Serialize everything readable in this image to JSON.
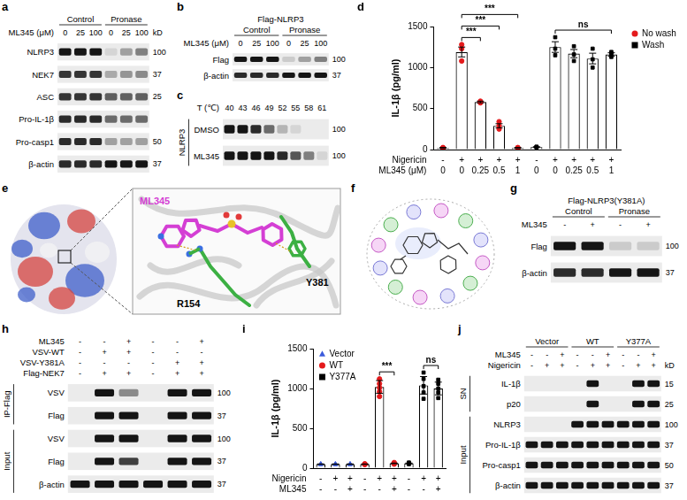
{
  "panels": {
    "a": {
      "letter": "a",
      "groups": [
        {
          "label": "Control",
          "lanes": 3
        },
        {
          "label": "Pronase",
          "lanes": 3
        }
      ],
      "lane_rows": [
        {
          "label": "ML345 (μM)",
          "values": [
            0,
            25,
            100,
            0,
            25,
            100
          ]
        }
      ],
      "unit": "kD",
      "rows": [
        {
          "label": "NLRP3",
          "marker": 100,
          "bands": [
            1,
            1,
            1,
            0.1,
            0.35,
            0.5
          ]
        },
        {
          "label": "NEK7",
          "marker": 37,
          "bands": [
            0.85,
            0.85,
            0.85,
            0.3,
            0.4,
            0.45
          ]
        },
        {
          "label": "ASC",
          "marker": 25,
          "bands": [
            0.85,
            0.85,
            0.85,
            0.65,
            0.65,
            0.65
          ]
        },
        {
          "label": "Pro-IL-1β",
          "bands": [
            0.9,
            0.9,
            0.9,
            0.6,
            0.6,
            0.6
          ]
        },
        {
          "label": "Pro-casp1",
          "marker": 50,
          "bands": [
            0.9,
            0.9,
            0.9,
            0.35,
            0.35,
            0.35
          ]
        },
        {
          "label": "β-actin",
          "marker": 37,
          "bands": [
            0.9,
            0.9,
            0.9,
            1,
            1,
            1
          ]
        }
      ]
    },
    "b": {
      "letter": "b",
      "title": "Flag-NLRP3",
      "groups": [
        {
          "label": "Control",
          "lanes": 3
        },
        {
          "label": "Pronase",
          "lanes": 3
        }
      ],
      "lane_rows": [
        {
          "label": "ML345 (μM)",
          "values": [
            0,
            25,
            100,
            0,
            25,
            100
          ]
        }
      ],
      "rows": [
        {
          "label": "Flag",
          "marker": 100,
          "bands": [
            1,
            1,
            1,
            0.15,
            0.35,
            0.5
          ]
        },
        {
          "label": "β-actin",
          "marker": 37,
          "bands": [
            0.9,
            0.9,
            0.9,
            1,
            1,
            1
          ]
        }
      ]
    },
    "c": {
      "letter": "c",
      "lane_rows": [
        {
          "label": "T (℃)",
          "values": [
            40,
            43,
            46,
            49,
            52,
            55,
            58,
            61
          ]
        }
      ],
      "row_groups": [
        {
          "label": "NLRP3",
          "rows": 2
        }
      ],
      "rows": [
        {
          "label": "DMSO",
          "marker": 100,
          "bands": [
            1,
            1,
            0.9,
            0.6,
            0.25,
            0.1,
            0,
            0
          ]
        },
        {
          "label": "ML345",
          "marker": 100,
          "bands": [
            1,
            1,
            1,
            1,
            0.9,
            0.7,
            0.5,
            0.1
          ]
        }
      ]
    },
    "e": {
      "letter": "e",
      "ligand": "ML345",
      "residues": [
        "R154",
        "Y381"
      ]
    },
    "f": {
      "letter": "f"
    },
    "g": {
      "letter": "g",
      "title": "Flag-NLRP3(Y381A)",
      "groups": [
        {
          "label": "Control",
          "lanes": 2
        },
        {
          "label": "Pronase",
          "lanes": 2
        }
      ],
      "lane_rows": [
        {
          "label": "ML345",
          "values": [
            "-",
            "+",
            "-",
            "+"
          ]
        }
      ],
      "rows": [
        {
          "label": "Flag",
          "marker": 100,
          "bands": [
            1,
            1,
            0.15,
            0.15
          ]
        },
        {
          "label": "β-actin",
          "marker": 37,
          "bands": [
            0.9,
            0.9,
            1,
            1
          ]
        }
      ]
    },
    "h": {
      "letter": "h",
      "lane_rows": [
        {
          "label": "ML345",
          "values": [
            "-",
            "-",
            "+",
            "-",
            "-",
            "+"
          ]
        },
        {
          "label": "VSV-WT",
          "values": [
            "-",
            "+",
            "+",
            "-",
            "-",
            "-"
          ]
        },
        {
          "label": "VSV-Y381A",
          "values": [
            "-",
            "-",
            "-",
            "-",
            "+",
            "+"
          ]
        },
        {
          "label": "Flag-NEK7",
          "values": [
            "-",
            "+",
            "+",
            "-",
            "+",
            "+"
          ]
        }
      ],
      "row_groups": [
        {
          "label": "IP-Flag",
          "rows": 2
        },
        {
          "label": "Input",
          "rows": 3
        }
      ],
      "rows": [
        {
          "label": "VSV",
          "marker": 100,
          "bands": [
            0,
            1,
            0.45,
            0,
            1,
            1
          ]
        },
        {
          "label": "Flag",
          "marker": 37,
          "bands": [
            0,
            1,
            1,
            0,
            1,
            1
          ]
        },
        {
          "label": "VSV",
          "marker": 100,
          "bands": [
            0,
            1,
            1,
            0,
            1,
            1
          ]
        },
        {
          "label": "Flag",
          "marker": 37,
          "bands": [
            0,
            1,
            0.8,
            0,
            1,
            1
          ]
        },
        {
          "label": "β-actin",
          "marker": 37,
          "bands": [
            1,
            1,
            1,
            1,
            1,
            1
          ]
        }
      ]
    },
    "j": {
      "letter": "j",
      "groups": [
        {
          "label": "Vector",
          "lanes": 3
        },
        {
          "label": "WT",
          "lanes": 3
        },
        {
          "label": "Y377A",
          "lanes": 3
        }
      ],
      "lane_rows": [
        {
          "label": "ML345",
          "values": [
            "-",
            "-",
            "+",
            "-",
            "-",
            "+",
            "-",
            "-",
            "+"
          ]
        },
        {
          "label": "Nigericin",
          "values": [
            "-",
            "+",
            "+",
            "-",
            "+",
            "+",
            "-",
            "+",
            "+"
          ]
        }
      ],
      "unit": "kD",
      "row_groups": [
        {
          "label": "SN",
          "rows": 2
        },
        {
          "label": "Input",
          "rows": 4
        }
      ],
      "rows": [
        {
          "label": "IL-1β",
          "marker": 15,
          "bands": [
            0,
            0,
            0,
            0,
            1,
            0,
            0,
            1,
            1
          ]
        },
        {
          "label": "p20",
          "marker": 25,
          "bands": [
            0,
            0,
            0,
            0,
            1,
            0,
            0,
            1,
            1
          ]
        },
        {
          "label": "NLRP3",
          "marker": 100,
          "bands": [
            0,
            0,
            0,
            1,
            1,
            1,
            1,
            1,
            1
          ]
        },
        {
          "label": "Pro-IL-1β",
          "marker": 37,
          "bands": [
            1,
            1,
            1,
            1,
            1,
            1,
            1,
            1,
            1
          ]
        },
        {
          "label": "Pro-casp1",
          "marker": 50,
          "bands": [
            1,
            1,
            1,
            1,
            1,
            1,
            1,
            1,
            1
          ]
        },
        {
          "label": "β-actin",
          "marker": 37,
          "bands": [
            1,
            1,
            1,
            1,
            1,
            1,
            1,
            1,
            1
          ]
        }
      ]
    }
  },
  "chart_data": [
    {
      "letter": "d",
      "type": "bar",
      "y_label": "IL-1β (pg/ml)",
      "categories": [
        0,
        0,
        0.25,
        0.5,
        1,
        0,
        0,
        0.25,
        0.5,
        1
      ],
      "category_label": "ML345 (μM)",
      "treatment_row": {
        "label": "Nigericin",
        "values": [
          "-",
          "+",
          "+",
          "+",
          "+",
          "-",
          "+",
          "+",
          "+",
          "+"
        ]
      },
      "ylim": [
        0,
        1500
      ],
      "yticks": [
        0,
        500,
        1000,
        1500
      ],
      "grid": false,
      "legend": "right",
      "series": [
        {
          "name": "No wash",
          "color": "#e41a1c",
          "marker": "circle",
          "values": [
            20,
            1190,
            580,
            290,
            20,
            null,
            null,
            null,
            null,
            null
          ],
          "errors": [
            5,
            60,
            10,
            25,
            5,
            null,
            null,
            null,
            null,
            null
          ],
          "points": [
            [
              15,
              20,
              25
            ],
            [
              1080,
              1230,
              1280
            ],
            [
              570,
              580,
              590
            ],
            [
              250,
              290,
              340
            ],
            [
              15,
              20,
              25
            ],
            null,
            null,
            null,
            null,
            null
          ]
        },
        {
          "name": "Wash",
          "color": "#000000",
          "marker": "square",
          "values": [
            null,
            null,
            null,
            null,
            null,
            30,
            1250,
            1170,
            1110,
            1160
          ],
          "errors": [
            null,
            null,
            null,
            null,
            null,
            5,
            65,
            50,
            65,
            20
          ],
          "points": [
            null,
            null,
            null,
            null,
            null,
            [
              25,
              30,
              35
            ],
            [
              1150,
              1230,
              1370
            ],
            [
              1080,
              1160,
              1260
            ],
            [
              1000,
              1100,
              1230
            ],
            [
              1130,
              1160,
              1190
            ]
          ]
        }
      ],
      "significance": [
        {
          "from": 1,
          "to": 2,
          "label": "***"
        },
        {
          "from": 1,
          "to": 3,
          "label": "***"
        },
        {
          "from": 1,
          "to": 4,
          "label": "***"
        },
        {
          "from": 6,
          "to": 9,
          "label": "ns"
        }
      ]
    },
    {
      "letter": "i",
      "type": "bar",
      "y_label": "IL-1β (pg/ml)",
      "categories": [
        "-",
        "-",
        "+",
        "-",
        "-",
        "+",
        "-",
        "-",
        "+"
      ],
      "category_label": "ML345",
      "treatment_row": {
        "label": "Nigericin",
        "values": [
          "-",
          "+",
          "+",
          "-",
          "+",
          "+",
          "-",
          "+",
          "+"
        ]
      },
      "ylim": [
        0,
        1500
      ],
      "yticks": [
        0,
        500,
        1000,
        1500
      ],
      "grid": false,
      "legend": "top-left",
      "series": [
        {
          "name": "Vector",
          "color": "#3b5bdb",
          "marker": "triangle",
          "values": [
            50,
            50,
            50,
            null,
            null,
            null,
            null,
            null,
            null
          ],
          "errors": [
            3,
            3,
            3,
            null,
            null,
            null,
            null,
            null,
            null
          ],
          "points": [
            [
              45,
              50,
              55
            ],
            [
              45,
              50,
              55
            ],
            [
              45,
              50,
              55
            ],
            null,
            null,
            null,
            null,
            null,
            null
          ]
        },
        {
          "name": "WT",
          "color": "#e41a1c",
          "marker": "circle",
          "values": [
            null,
            null,
            null,
            50,
            1020,
            60,
            null,
            null,
            null
          ],
          "errors": [
            null,
            null,
            null,
            3,
            80,
            4,
            null,
            null,
            null
          ],
          "points": [
            null,
            null,
            null,
            [
              45,
              50,
              55
            ],
            [
              900,
              960,
              1010,
              1060,
              1120
            ],
            [
              50,
              60,
              70
            ],
            null,
            null,
            null
          ]
        },
        {
          "name": "Y377A",
          "color": "#000000",
          "marker": "square",
          "values": [
            null,
            null,
            null,
            null,
            null,
            null,
            60,
            1040,
            1000
          ],
          "errors": [
            null,
            null,
            null,
            null,
            null,
            null,
            4,
            110,
            80
          ],
          "points": [
            null,
            null,
            null,
            null,
            null,
            null,
            [
              50,
              60,
              70
            ],
            [
              870,
              950,
              1030,
              1120,
              1200
            ],
            [
              880,
              950,
              1000,
              1060,
              1110
            ]
          ]
        }
      ],
      "significance": [
        {
          "from": 4,
          "to": 5,
          "label": "***"
        },
        {
          "from": 7,
          "to": 8,
          "label": "ns"
        }
      ]
    }
  ]
}
